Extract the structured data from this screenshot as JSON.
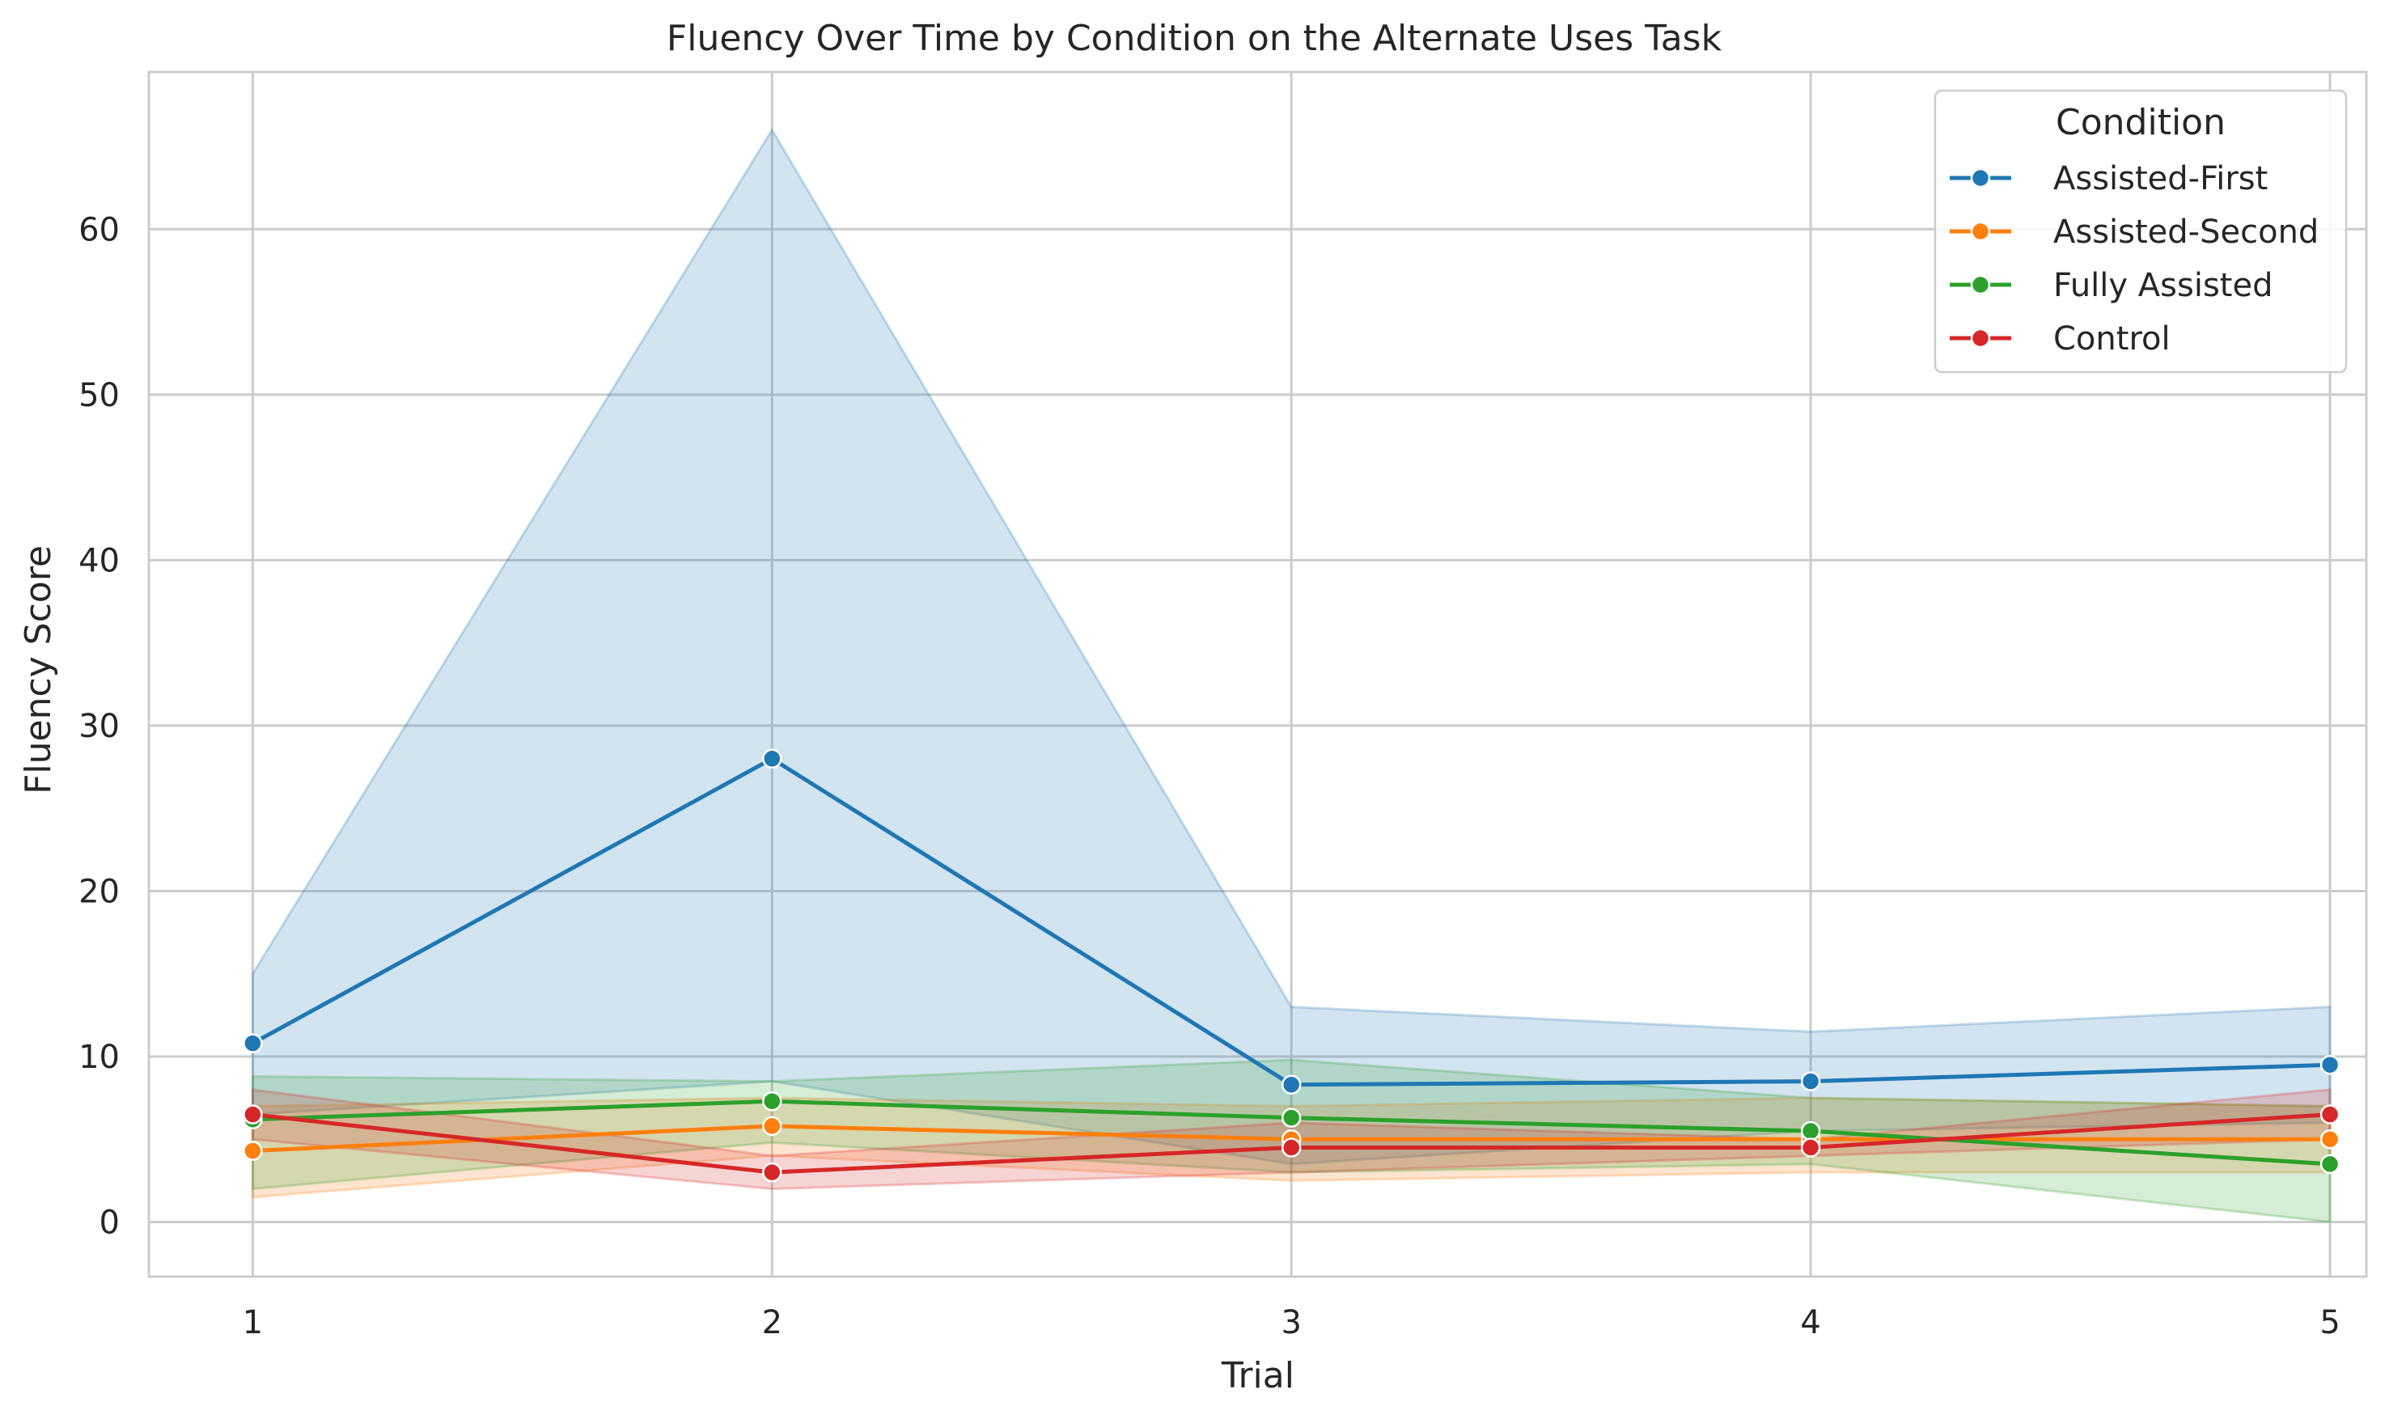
{
  "chart_data": {
    "type": "line",
    "title": "Fluency Over Time by Condition on the Alternate Uses Task",
    "xlabel": "Trial",
    "ylabel": "Fluency Score",
    "x": [
      1,
      2,
      3,
      4,
      5
    ],
    "x_tick_labels": [
      "1",
      "2",
      "3",
      "4",
      "5"
    ],
    "yticks": [
      0,
      10,
      20,
      30,
      40,
      50,
      60
    ],
    "y_tick_labels": [
      "0",
      "10",
      "20",
      "30",
      "40",
      "50",
      "60"
    ],
    "xlim": [
      0.8,
      5.07
    ],
    "ylim": [
      -3.3,
      69.5
    ],
    "grid": true,
    "legend": {
      "title": "Condition",
      "placement": "top-right"
    },
    "series": [
      {
        "name": "Assisted-First",
        "color": "#1f77b4",
        "values": [
          10.8,
          28.0,
          8.3,
          8.5,
          9.5
        ],
        "ci_lower": [
          6.5,
          8.5,
          3.5,
          5.5,
          6.0
        ],
        "ci_upper": [
          15.0,
          66.0,
          13.0,
          11.5,
          13.0
        ]
      },
      {
        "name": "Assisted-Second",
        "color": "#ff7f0e",
        "values": [
          4.3,
          5.8,
          5.0,
          5.0,
          5.0
        ],
        "ci_lower": [
          1.5,
          4.0,
          2.5,
          3.0,
          3.0
        ],
        "ci_upper": [
          7.0,
          7.5,
          7.0,
          7.5,
          7.0
        ]
      },
      {
        "name": "Fully Assisted",
        "color": "#2ca02c",
        "values": [
          6.2,
          7.3,
          6.3,
          5.5,
          3.5
        ],
        "ci_lower": [
          2.0,
          4.8,
          3.0,
          3.5,
          0.0
        ],
        "ci_upper": [
          8.8,
          8.5,
          9.8,
          7.5,
          7.0
        ]
      },
      {
        "name": "Control",
        "color": "#d62728",
        "values": [
          6.5,
          3.0,
          4.5,
          4.5,
          6.5
        ],
        "ci_lower": [
          5.0,
          2.0,
          3.0,
          4.0,
          5.0
        ],
        "ci_upper": [
          8.0,
          4.0,
          6.0,
          5.0,
          8.0
        ]
      }
    ]
  }
}
